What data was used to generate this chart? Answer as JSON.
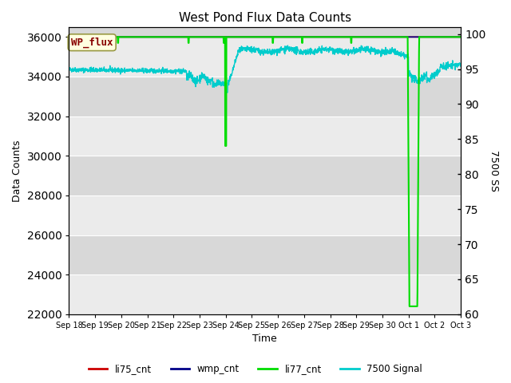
{
  "title": "West Pond Flux Data Counts",
  "xlabel": "Time",
  "ylabel_left": "Data Counts",
  "ylabel_right": "7500 SS",
  "ylim_left": [
    22000,
    36500
  ],
  "ylim_right": [
    60,
    101
  ],
  "yticks_left": [
    22000,
    24000,
    26000,
    28000,
    30000,
    32000,
    34000,
    36000
  ],
  "yticks_right": [
    60,
    65,
    70,
    75,
    80,
    85,
    90,
    95,
    100
  ],
  "bg_color_light": "#ebebeb",
  "bg_color_dark": "#d8d8d8",
  "wp_flux_box_color": "#ffffe0",
  "wp_flux_text_color": "#880000",
  "li75_color": "#cc0000",
  "wmp_color": "#000088",
  "li77_color": "#00dd00",
  "signal_color": "#00cccc",
  "legend_labels": [
    "li75_cnt",
    "wmp_cnt",
    "li77_cnt",
    "7500 Signal"
  ],
  "date_labels": [
    "Sep 18",
    "Sep 19",
    "Sep 20",
    "Sep 21",
    "Sep 22",
    "Sep 23",
    "Sep 24",
    "Sep 25",
    "Sep 26",
    "Sep 27",
    "Sep 28",
    "Sep 29",
    "Sep 30",
    "Oct 1",
    "Oct 2",
    "Oct 3"
  ]
}
